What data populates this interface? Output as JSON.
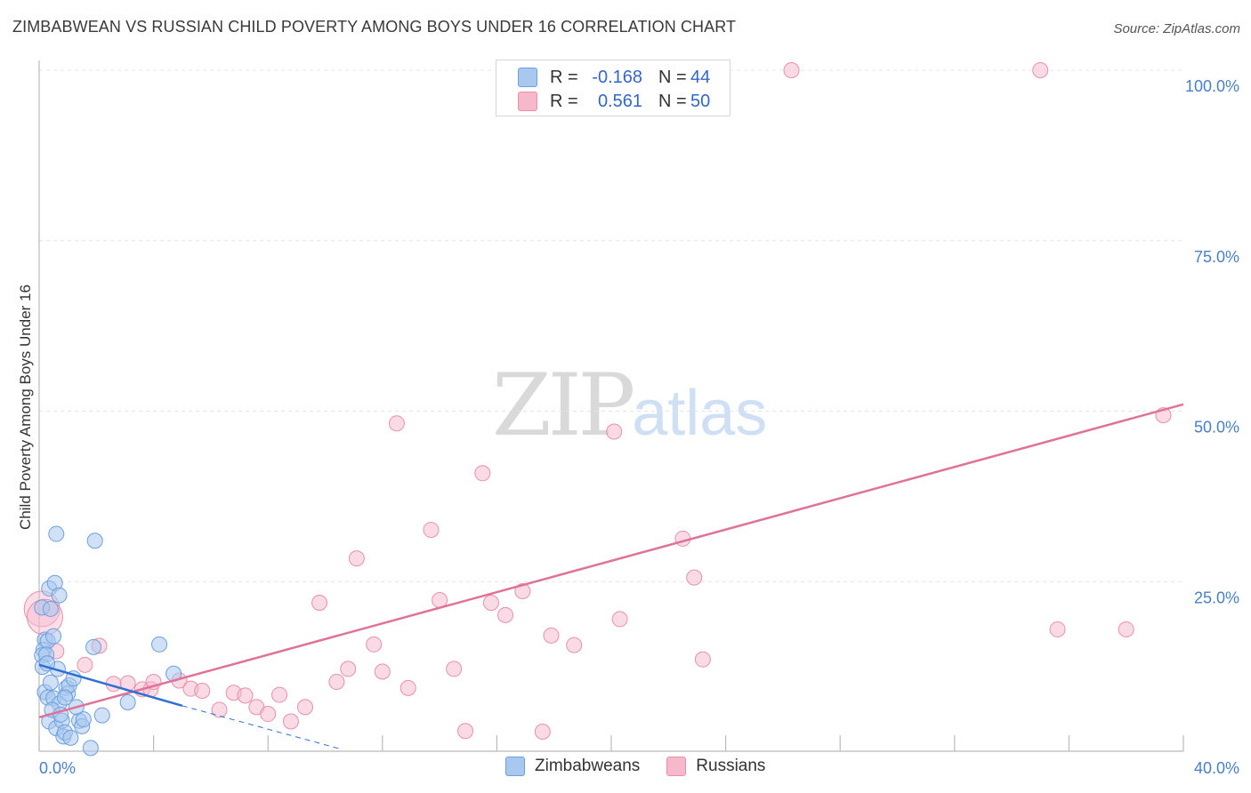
{
  "header": {
    "title": "ZIMBABWEAN VS RUSSIAN CHILD POVERTY AMONG BOYS UNDER 16 CORRELATION CHART",
    "source": "Source: ZipAtlas.com"
  },
  "watermark": {
    "zip": "ZIP",
    "atlas": "atlas"
  },
  "legend": {
    "rows": [
      {
        "r_label": "R =",
        "r_value": "-0.168",
        "n_label": "N =",
        "n_value": "44",
        "color": "#a9c8ef"
      },
      {
        "r_label": "R =",
        "r_value": "0.561",
        "n_label": "N =",
        "n_value": "50",
        "color": "#f6b8cb"
      }
    ]
  },
  "bottom_legend": {
    "series1": "Zimbabweans",
    "series2": "Russians"
  },
  "colors": {
    "zim_fill": "#a9c8ef",
    "zim_stroke": "#6d9fdc",
    "zim_line": "#2e6fd3",
    "rus_fill": "#f6b8cb",
    "rus_stroke": "#e890ab",
    "rus_line": "#e0729a",
    "grid": "#e4e4e4",
    "tick": "#4a7fc8"
  },
  "chart_data": {
    "type": "scatter",
    "title": "ZIMBABWEAN VS RUSSIAN CHILD POVERTY AMONG BOYS UNDER 16 CORRELATION CHART",
    "xlabel": "",
    "ylabel": "Child Poverty Among Boys Under 16",
    "xlim": [
      0,
      40
    ],
    "ylim": [
      0,
      100
    ],
    "x_tick_labels": [
      "0.0%",
      "40.0%"
    ],
    "y_ticks": [
      25,
      50,
      75,
      100
    ],
    "y_tick_labels": [
      "25.0%",
      "50.0%",
      "75.0%",
      "100.0%"
    ],
    "series": [
      {
        "name": "Zimbabweans",
        "r": -0.168,
        "n": 44,
        "trend": {
          "x0": 0,
          "y0": 12.8,
          "x1": 5.0,
          "y1": 6.8,
          "dash_to_x": 10.5,
          "dash_to_y": 0.5
        },
        "points": [
          [
            0.1,
            21.2
          ],
          [
            0.2,
            16.5
          ],
          [
            0.15,
            15.0
          ],
          [
            0.1,
            14.2
          ],
          [
            0.3,
            16.3
          ],
          [
            0.25,
            14.3
          ],
          [
            0.35,
            24.0
          ],
          [
            0.4,
            21.0
          ],
          [
            0.5,
            17.0
          ],
          [
            0.55,
            24.8
          ],
          [
            0.6,
            32.0
          ],
          [
            0.7,
            23.0
          ],
          [
            0.2,
            8.8
          ],
          [
            0.3,
            8.0
          ],
          [
            0.35,
            4.5
          ],
          [
            0.4,
            10.2
          ],
          [
            0.5,
            7.9
          ],
          [
            0.6,
            3.5
          ],
          [
            0.7,
            7.1
          ],
          [
            0.8,
            4.6
          ],
          [
            0.85,
            2.3
          ],
          [
            0.9,
            2.9
          ],
          [
            0.95,
            9.4
          ],
          [
            1.0,
            8.6
          ],
          [
            1.05,
            9.8
          ],
          [
            1.1,
            2.1
          ],
          [
            1.2,
            10.8
          ],
          [
            1.4,
            4.6
          ],
          [
            1.5,
            3.8
          ],
          [
            1.55,
            4.8
          ],
          [
            1.8,
            0.6
          ],
          [
            1.9,
            15.4
          ],
          [
            1.95,
            31.0
          ],
          [
            2.2,
            5.4
          ],
          [
            3.1,
            7.3
          ],
          [
            4.2,
            15.8
          ],
          [
            4.7,
            11.5
          ],
          [
            0.45,
            6.2
          ],
          [
            0.65,
            12.2
          ],
          [
            0.75,
            5.5
          ],
          [
            0.12,
            12.5
          ],
          [
            0.28,
            13.0
          ],
          [
            1.3,
            6.6
          ],
          [
            0.9,
            8.0
          ]
        ]
      },
      {
        "name": "Russians",
        "r": 0.561,
        "n": 50,
        "trend": {
          "x0": 0,
          "y0": 5.1,
          "x1": 40,
          "y1": 51.0
        },
        "points": [
          [
            0.1,
            21.0
          ],
          [
            0.2,
            19.8
          ],
          [
            0.6,
            14.8
          ],
          [
            1.6,
            12.8
          ],
          [
            2.1,
            15.6
          ],
          [
            2.6,
            10.0
          ],
          [
            3.1,
            10.1
          ],
          [
            3.6,
            9.2
          ],
          [
            3.9,
            9.2
          ],
          [
            4.0,
            10.3
          ],
          [
            4.9,
            10.5
          ],
          [
            5.3,
            9.3
          ],
          [
            5.7,
            9.0
          ],
          [
            6.3,
            6.2
          ],
          [
            6.8,
            8.7
          ],
          [
            7.2,
            8.3
          ],
          [
            7.6,
            6.6
          ],
          [
            8.0,
            5.6
          ],
          [
            8.4,
            8.4
          ],
          [
            8.8,
            4.5
          ],
          [
            9.3,
            6.6
          ],
          [
            9.8,
            21.9
          ],
          [
            10.4,
            10.3
          ],
          [
            10.8,
            12.2
          ],
          [
            11.1,
            28.4
          ],
          [
            11.7,
            15.8
          ],
          [
            12.0,
            11.8
          ],
          [
            12.5,
            48.2
          ],
          [
            12.9,
            9.4
          ],
          [
            13.7,
            32.6
          ],
          [
            14.0,
            22.3
          ],
          [
            14.5,
            12.2
          ],
          [
            14.9,
            3.1
          ],
          [
            15.5,
            40.9
          ],
          [
            15.8,
            21.9
          ],
          [
            16.3,
            20.1
          ],
          [
            16.9,
            23.6
          ],
          [
            17.6,
            3.0
          ],
          [
            17.9,
            17.1
          ],
          [
            18.7,
            15.7
          ],
          [
            20.1,
            47.0
          ],
          [
            20.3,
            19.5
          ],
          [
            22.5,
            31.3
          ],
          [
            22.9,
            25.6
          ],
          [
            23.2,
            13.6
          ],
          [
            26.3,
            100.0
          ],
          [
            35.0,
            100.0
          ],
          [
            35.6,
            18.0
          ],
          [
            38.0,
            18.0
          ],
          [
            39.3,
            49.4
          ]
        ]
      }
    ]
  }
}
